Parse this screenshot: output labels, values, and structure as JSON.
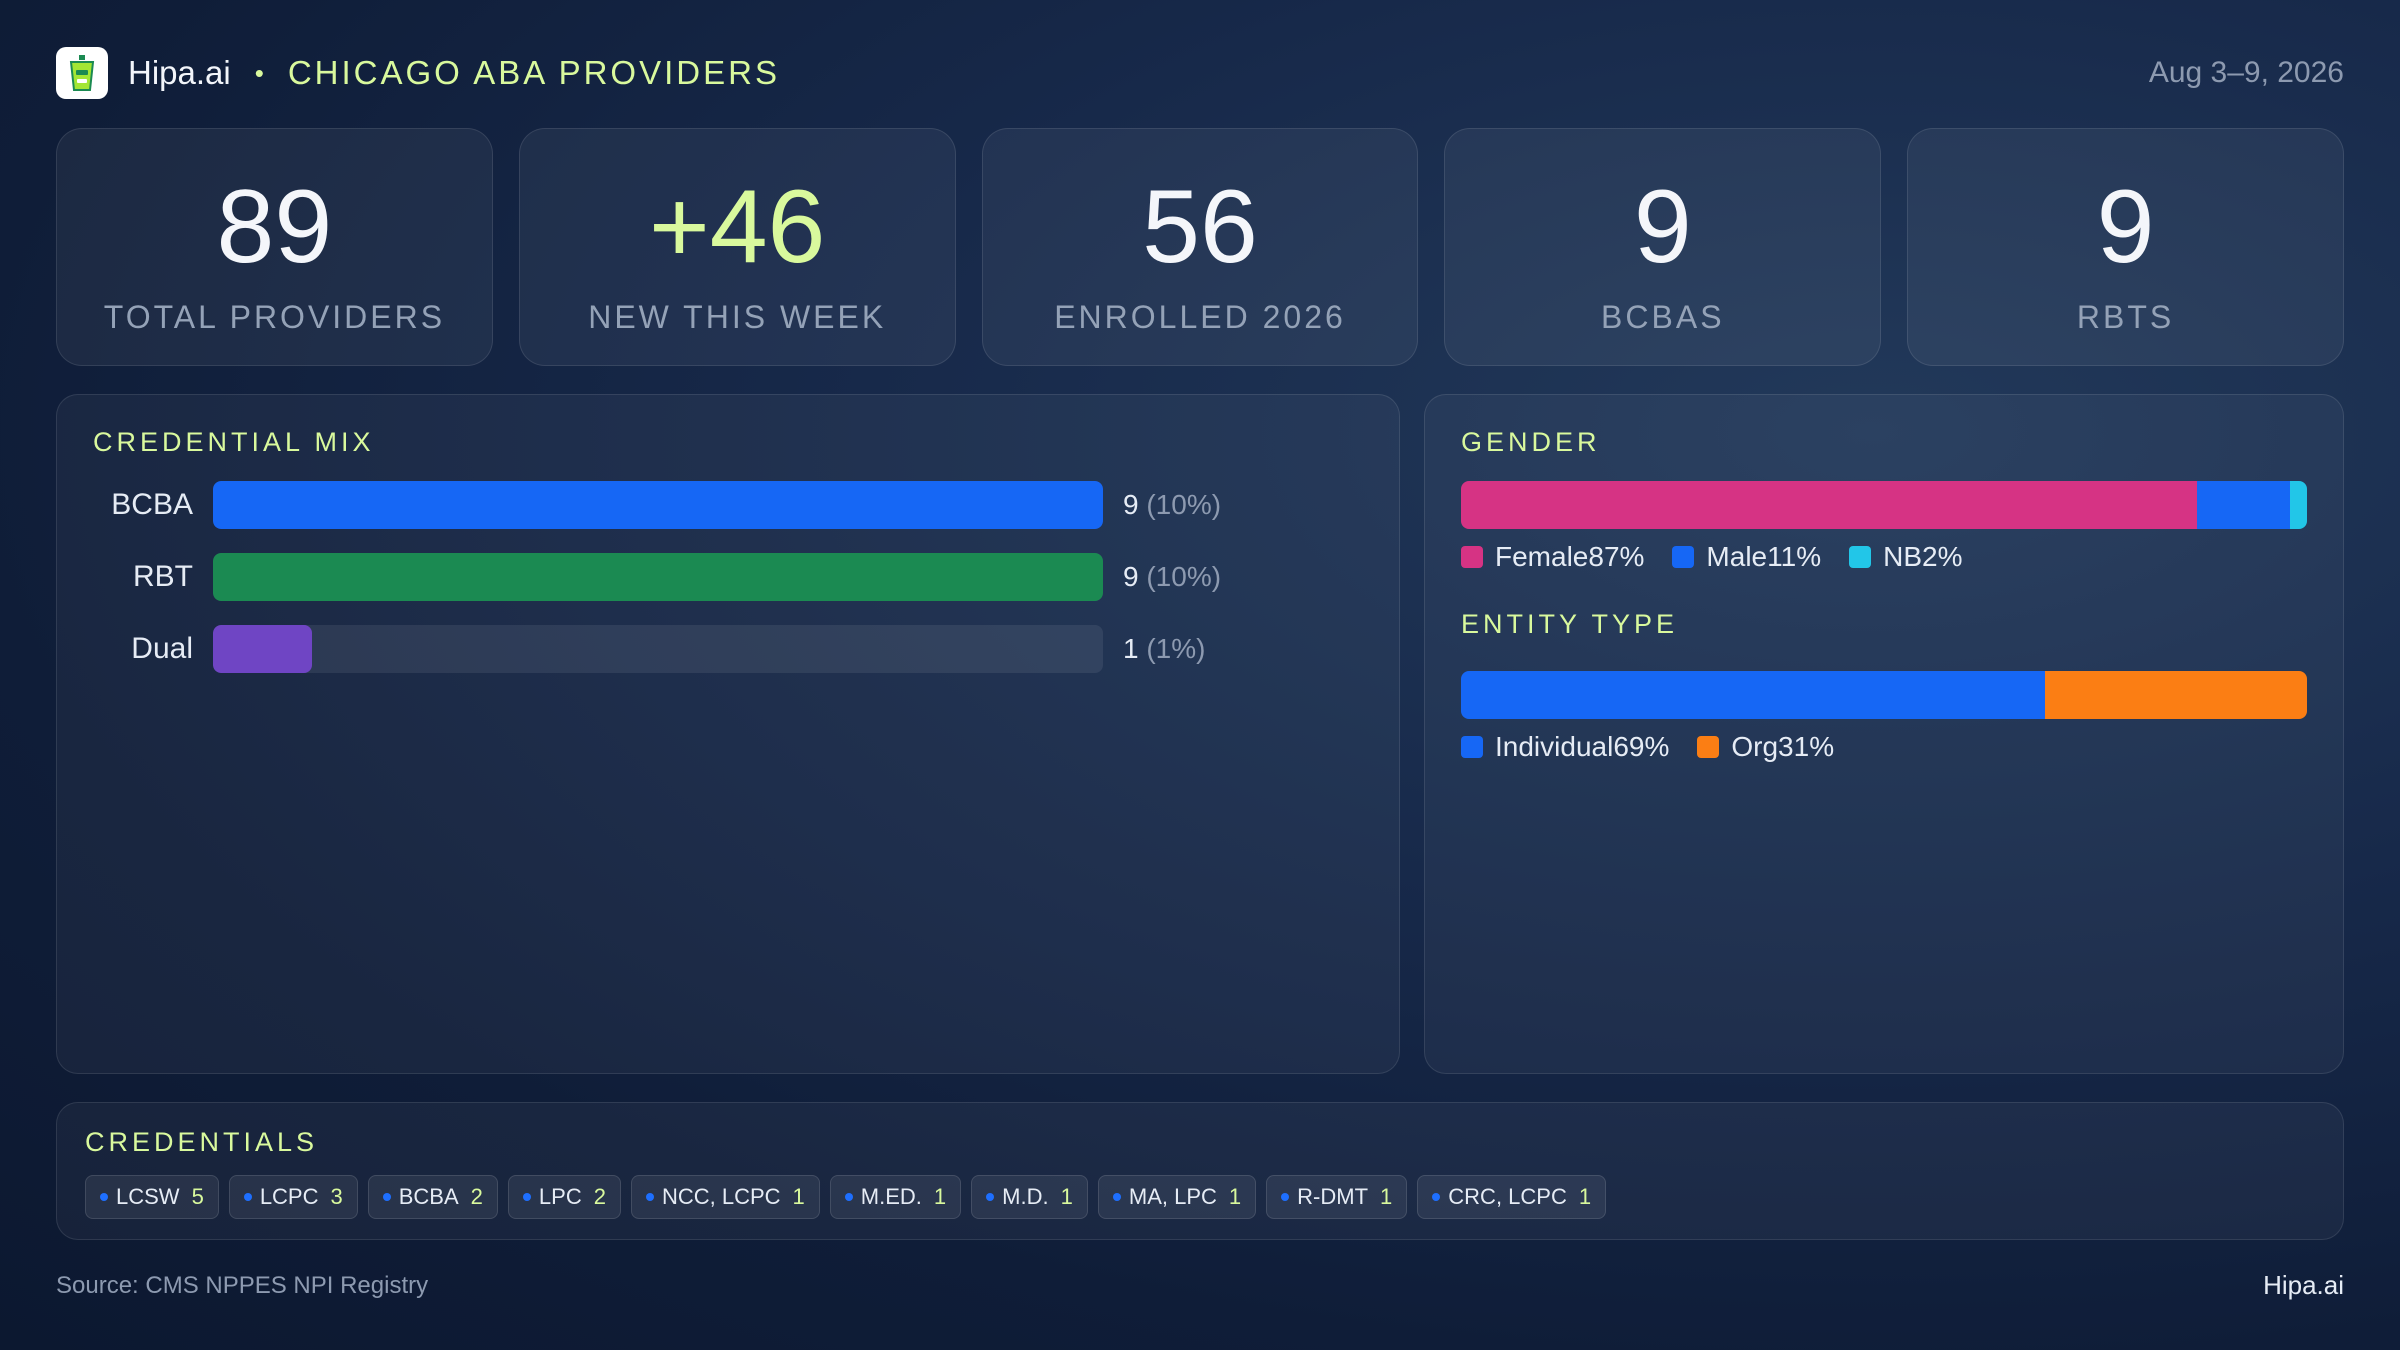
{
  "header": {
    "brand": "Hipa.ai",
    "separator": "•",
    "title": "CHICAGO ABA PROVIDERS",
    "date": "Aug 3–9, 2026",
    "logo_icon": "drink-cup-icon"
  },
  "stats": [
    {
      "value": "89",
      "label": "TOTAL PROVIDERS",
      "accent": false
    },
    {
      "value": "+46",
      "label": "NEW THIS WEEK",
      "accent": true
    },
    {
      "value": "56",
      "label": "ENROLLED 2026",
      "accent": false
    },
    {
      "value": "9",
      "label": "BCBAS",
      "accent": false
    },
    {
      "value": "9",
      "label": "RBTS",
      "accent": false
    }
  ],
  "colors": {
    "accent": "#d9f99d",
    "blue": "#1667f5",
    "green": "#1b8a52",
    "purple": "#6f45c4",
    "pink": "#d63384",
    "cyan": "#22c6e8",
    "orange": "#fb7e14"
  },
  "chart_data": [
    {
      "type": "bar",
      "orientation": "horizontal",
      "title": "CREDENTIAL MIX",
      "categories": [
        "BCBA",
        "RBT",
        "Dual"
      ],
      "values": [
        9,
        9,
        1
      ],
      "value_labels": [
        "9",
        "9",
        "1"
      ],
      "percent_labels": [
        "(10%)",
        "(10%)",
        "(1%)"
      ],
      "colors": [
        "#1667f5",
        "#1b8a52",
        "#6f45c4"
      ],
      "xlim": [
        0,
        9
      ]
    },
    {
      "type": "bar",
      "orientation": "horizontal-stacked",
      "title": "GENDER",
      "series": [
        {
          "name": "Female",
          "value": 87,
          "label": "87%",
          "color": "#d63384"
        },
        {
          "name": "Male",
          "value": 11,
          "label": "11%",
          "color": "#1667f5"
        },
        {
          "name": "NB",
          "value": 2,
          "label": "2%",
          "color": "#22c6e8"
        }
      ]
    },
    {
      "type": "bar",
      "orientation": "horizontal-stacked",
      "title": "ENTITY TYPE",
      "series": [
        {
          "name": "Individual",
          "value": 69,
          "label": "69%",
          "color": "#1667f5"
        },
        {
          "name": "Org",
          "value": 31,
          "label": "31%",
          "color": "#fb7e14"
        }
      ]
    }
  ],
  "credentials": {
    "title": "CREDENTIALS",
    "items": [
      {
        "name": "LCSW",
        "count": "5"
      },
      {
        "name": "LCPC",
        "count": "3"
      },
      {
        "name": "BCBA",
        "count": "2"
      },
      {
        "name": "LPC",
        "count": "2"
      },
      {
        "name": "NCC, LCPC",
        "count": "1"
      },
      {
        "name": "M.ED.",
        "count": "1"
      },
      {
        "name": "M.D.",
        "count": "1"
      },
      {
        "name": "MA, LPC",
        "count": "1"
      },
      {
        "name": "R-DMT",
        "count": "1"
      },
      {
        "name": "CRC, LCPC",
        "count": "1"
      }
    ]
  },
  "footer": {
    "source": "Source: CMS NPPES NPI Registry",
    "brand": "Hipa.ai"
  }
}
